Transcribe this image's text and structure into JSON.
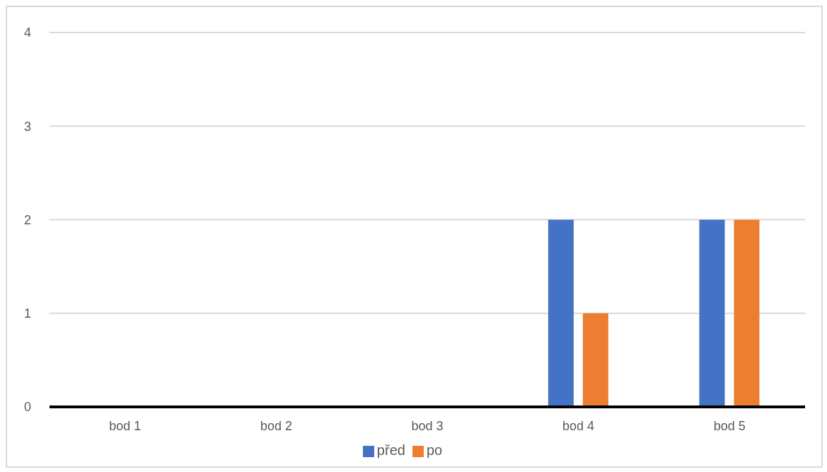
{
  "chart_data": {
    "type": "bar",
    "categories": [
      "bod 1",
      "bod 2",
      "bod 3",
      "bod 4",
      "bod 5"
    ],
    "series": [
      {
        "name": "před",
        "color": "#4472c4",
        "values": [
          0,
          0,
          0,
          2,
          2
        ]
      },
      {
        "name": "po",
        "color": "#ed7d31",
        "values": [
          0,
          0,
          0,
          1,
          2
        ]
      }
    ],
    "ylim": [
      0,
      4
    ],
    "yticks": [
      0,
      1,
      2,
      3,
      4
    ],
    "grid": "y",
    "legend": "bottom"
  }
}
